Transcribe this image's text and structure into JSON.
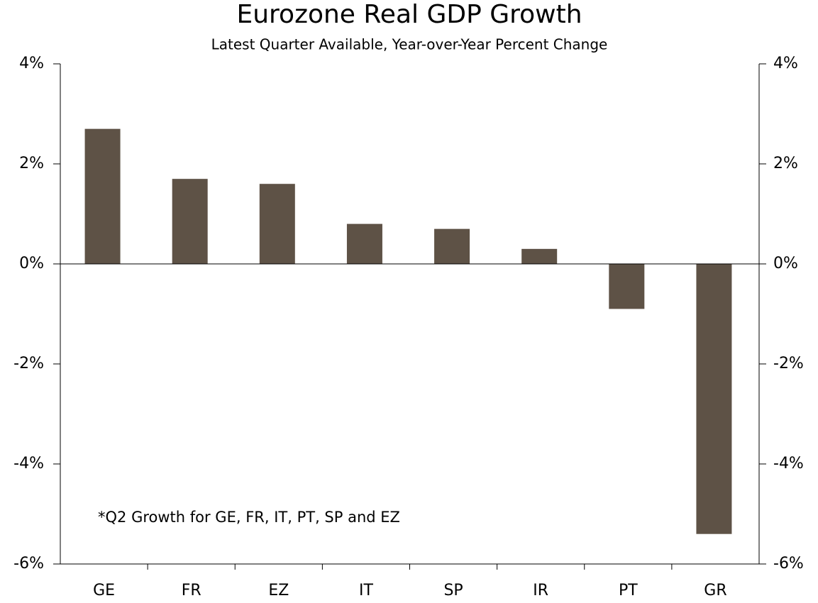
{
  "chart_data": {
    "type": "bar",
    "title": "Eurozone Real GDP Growth",
    "subtitle": "Latest Quarter Available, Year-over-Year Percent Change",
    "annotation": "*Q2 Growth for GE, FR, IT, PT, SP and EZ",
    "categories": [
      "GE",
      "FR",
      "EZ",
      "IT",
      "SP",
      "IR",
      "PT",
      "GR"
    ],
    "values": [
      2.7,
      1.7,
      1.6,
      0.8,
      0.7,
      0.3,
      -0.9,
      -5.4
    ],
    "color": "#5e5246",
    "ylim": [
      -6,
      4
    ],
    "yticks": [
      {
        "value": -6,
        "label": "-6%"
      },
      {
        "value": -4,
        "label": "-4%"
      },
      {
        "value": -2,
        "label": "-2%"
      },
      {
        "value": 0,
        "label": "0%"
      },
      {
        "value": 2,
        "label": "2%"
      },
      {
        "value": 4,
        "label": "4%"
      }
    ],
    "y2lim": [
      -6,
      4
    ],
    "y2ticks": [
      {
        "value": -6,
        "label": "-6%"
      },
      {
        "value": -4,
        "label": "-4%"
      },
      {
        "value": -2,
        "label": "-2%"
      },
      {
        "value": 0,
        "label": "0%"
      },
      {
        "value": 2,
        "label": "2%"
      },
      {
        "value": 4,
        "label": "4%"
      }
    ],
    "grid": false
  }
}
